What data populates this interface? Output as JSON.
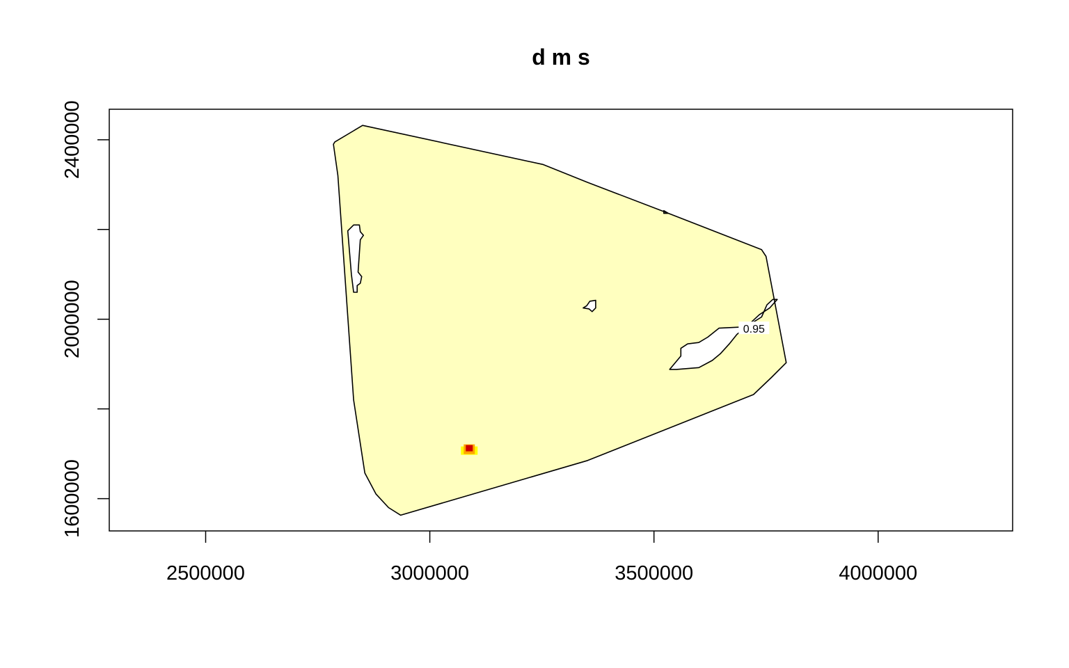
{
  "chart_data": {
    "type": "heatmap",
    "title": "d m s",
    "xlabel": "",
    "ylabel": "",
    "xlim": [
      2285000,
      4300000
    ],
    "ylim": [
      1528000,
      2468000
    ],
    "xticks": [
      2500000,
      3000000,
      3500000,
      4000000
    ],
    "xtick_labels": [
      "2500000",
      "3000000",
      "3500000",
      "4000000"
    ],
    "yticks": [
      1600000,
      2000000,
      2400000
    ],
    "ytick_labels": [
      "1600000",
      "2000000",
      "2400000"
    ],
    "grid": false,
    "fill_color": "#FFFFBF",
    "outline_color": "#000000",
    "contour_level_label": "0.95",
    "contour_label_position": [
      3723000,
      1976000
    ],
    "outline": [
      [
        2788000,
        2395000
      ],
      [
        2850000,
        2432000
      ],
      [
        3252000,
        2345000
      ],
      [
        3352000,
        2305000
      ],
      [
        3522000,
        2240000
      ],
      [
        3740000,
        2155000
      ],
      [
        3750000,
        2140000
      ],
      [
        3795000,
        1903000
      ],
      [
        3762000,
        1870000
      ],
      [
        3722000,
        1832000
      ],
      [
        3352000,
        1685000
      ],
      [
        2935000,
        1563000
      ],
      [
        2908000,
        1580000
      ],
      [
        2880000,
        1610000
      ],
      [
        2855000,
        1657000
      ],
      [
        2830000,
        1820000
      ],
      [
        2795000,
        2320000
      ],
      [
        2785000,
        2390000
      ]
    ],
    "holes": [
      [
        [
          2817000,
          2197000
        ],
        [
          2830000,
          2210000
        ],
        [
          2843000,
          2210000
        ],
        [
          2845000,
          2195000
        ],
        [
          2852000,
          2187000
        ],
        [
          2845000,
          2177000
        ],
        [
          2840000,
          2105000
        ],
        [
          2848000,
          2095000
        ],
        [
          2845000,
          2080000
        ],
        [
          2838000,
          2075000
        ],
        [
          2838000,
          2060000
        ],
        [
          2830000,
          2060000
        ],
        [
          2825000,
          2100000
        ]
      ],
      [
        [
          3350000,
          2030000
        ],
        [
          3357000,
          2040000
        ],
        [
          3370000,
          2042000
        ],
        [
          3370000,
          2025000
        ],
        [
          3362000,
          2017000
        ],
        [
          3355000,
          2023000
        ],
        [
          3342000,
          2025000
        ]
      ],
      [
        [
          3535000,
          1888000
        ],
        [
          3560000,
          1918000
        ],
        [
          3560000,
          1935000
        ],
        [
          3575000,
          1945000
        ],
        [
          3600000,
          1948000
        ],
        [
          3620000,
          1960000
        ],
        [
          3645000,
          1980000
        ],
        [
          3705000,
          1983000
        ],
        [
          3740000,
          2005000
        ],
        [
          3752000,
          2032000
        ],
        [
          3765000,
          2044000
        ],
        [
          3775000,
          2044000
        ],
        [
          3758000,
          2025000
        ],
        [
          3735000,
          2010000
        ],
        [
          3708000,
          1985000
        ],
        [
          3685000,
          1966000
        ],
        [
          3668000,
          1945000
        ],
        [
          3648000,
          1923000
        ],
        [
          3630000,
          1908000
        ],
        [
          3600000,
          1892000
        ],
        [
          3550000,
          1888000
        ]
      ],
      [
        [
          3522000,
          2236000
        ],
        [
          3532000,
          2236000
        ],
        [
          3522000,
          2242000
        ]
      ]
    ],
    "hotspot": {
      "center": [
        3088000,
        1707000
      ],
      "color_levels": [
        "#FFFF00",
        "#FFA500",
        "#CC0000"
      ]
    }
  }
}
